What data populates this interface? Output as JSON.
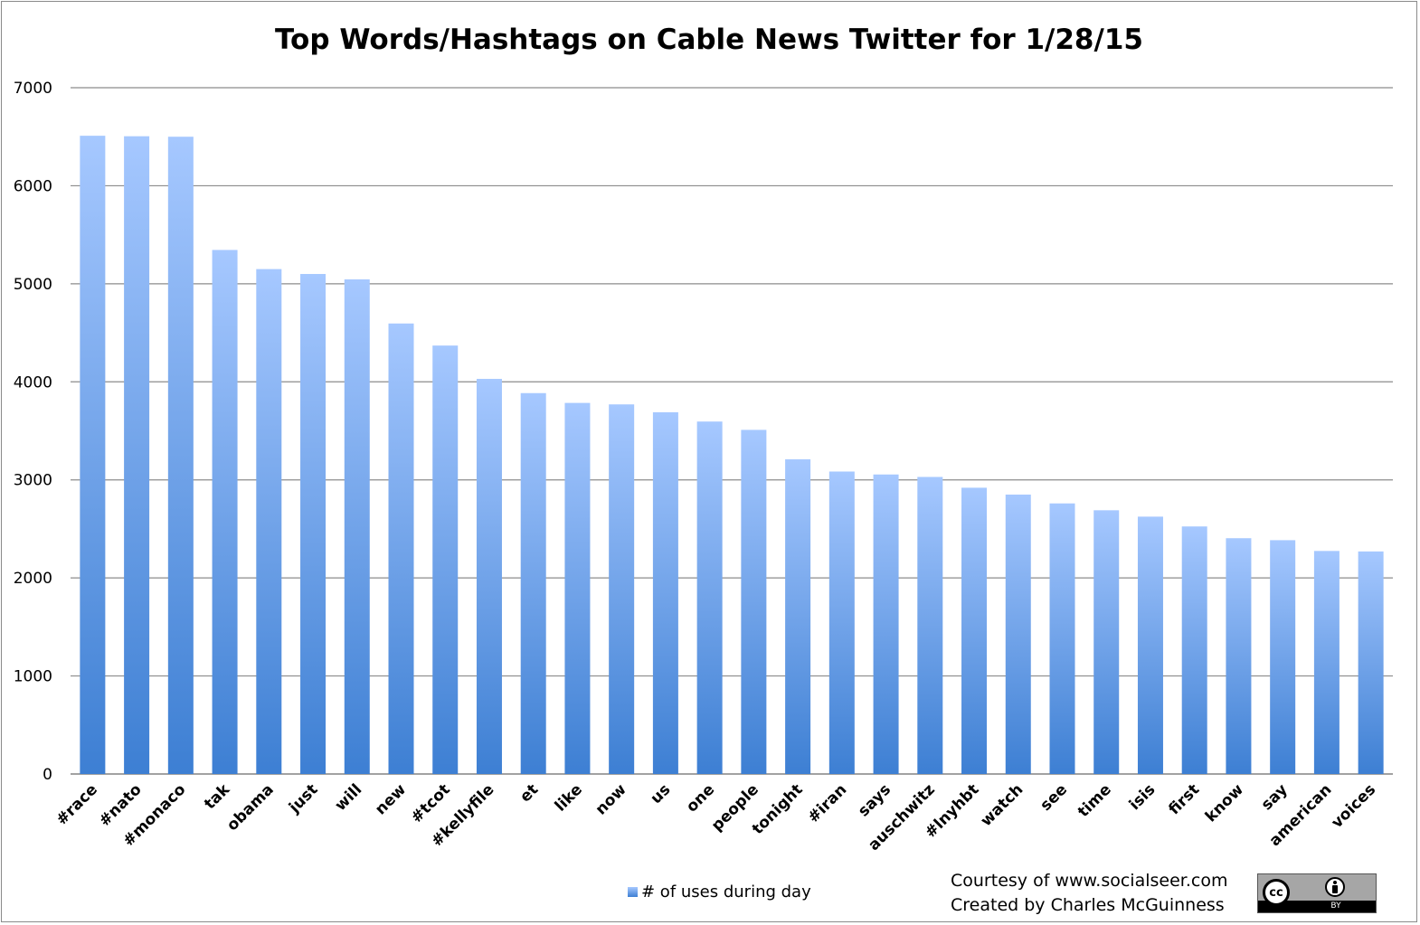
{
  "chart_data": {
    "type": "bar",
    "title": "Top Words/Hashtags on Cable News Twitter for 1/28/15",
    "xlabel": "",
    "ylabel": "",
    "ylim": [
      0,
      7000
    ],
    "yticks": [
      "0",
      "1000",
      "2000",
      "3000",
      "4000",
      "5000",
      "6000",
      "7000"
    ],
    "grid": true,
    "legend_position": "bottom",
    "categories": [
      "#race",
      "#nato",
      "#monaco",
      "tak",
      "obama",
      "just",
      "will",
      "new",
      "#tcot",
      "#kellyfile",
      "et",
      "like",
      "now",
      "us",
      "one",
      "people",
      "tonight",
      "#iran",
      "says",
      "auschwitz",
      "#lnyhbt",
      "watch",
      "see",
      "time",
      "isis",
      "first",
      "know",
      "say",
      "american",
      "voices"
    ],
    "series": [
      {
        "name": "# of uses during day",
        "values": [
          6510,
          6505,
          6500,
          5345,
          5150,
          5100,
          5045,
          4595,
          4370,
          4030,
          3885,
          3785,
          3770,
          3690,
          3595,
          3510,
          3210,
          3085,
          3055,
          3030,
          2920,
          2850,
          2760,
          2690,
          2625,
          2525,
          2405,
          2385,
          2275,
          2270
        ]
      }
    ],
    "colors": {
      "bar_top": "#a6c8ff",
      "bar_bottom": "#3d7fd3",
      "grid": "#8c8c8c"
    }
  },
  "credits": {
    "line1": "Courtesy of www.socialseer.com",
    "line2": "Created by Charles McGuinness"
  },
  "license_badge": {
    "icon": "creative-commons-by-icon",
    "cc_text": "cc",
    "by_text": "BY"
  }
}
